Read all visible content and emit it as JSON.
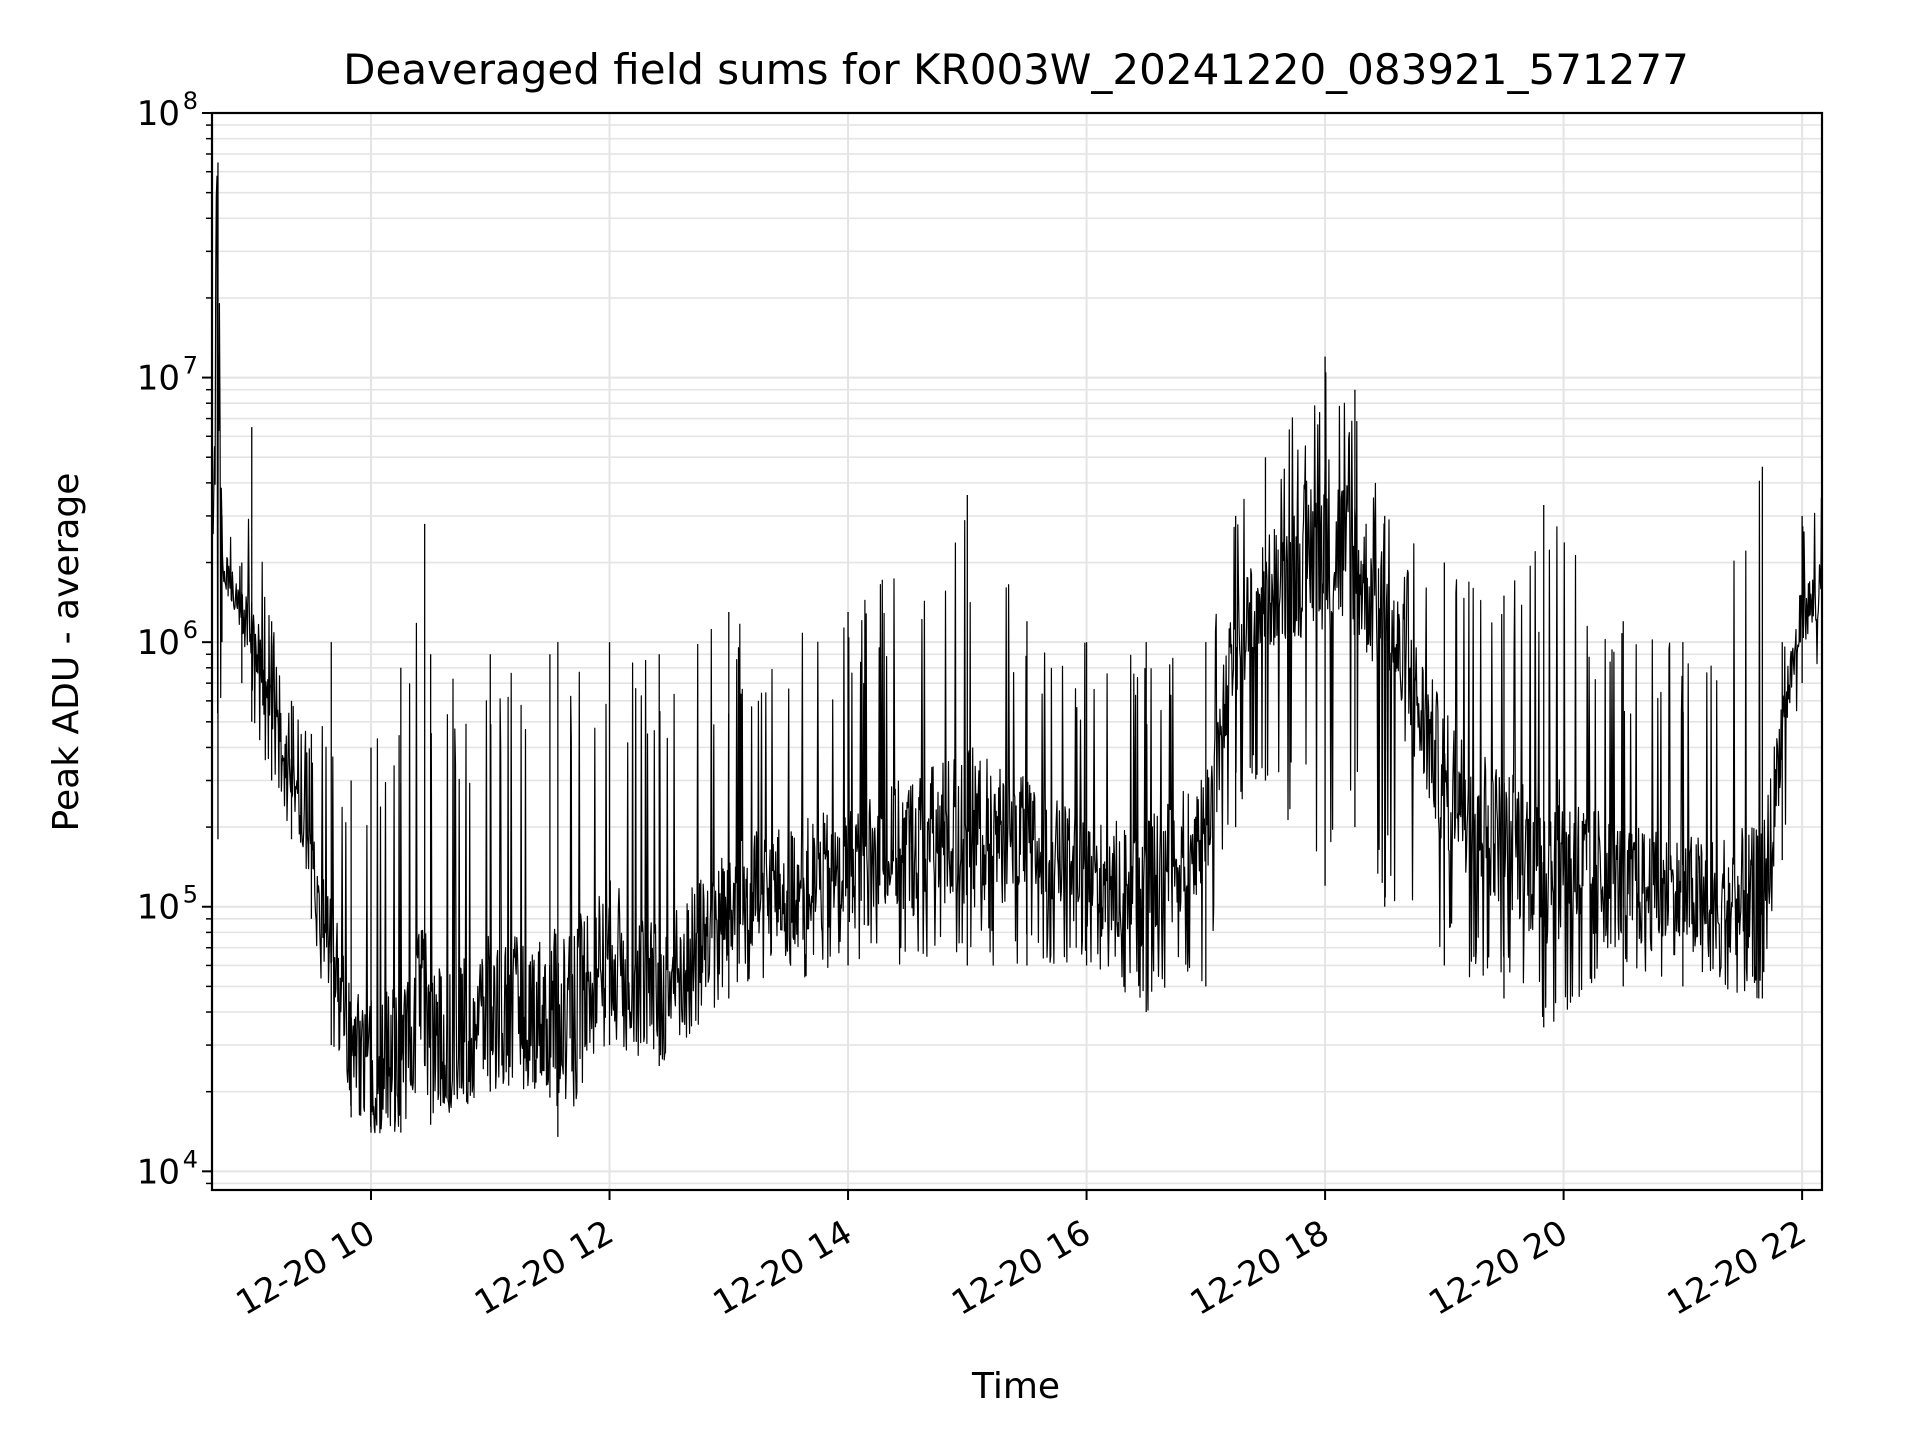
{
  "chart_data": {
    "type": "line",
    "title": "Deaveraged field sums for KR003W_20241220_083921_571277",
    "xlabel": "Time",
    "ylabel": "Peak ADU - average",
    "yscale": "log",
    "ylim": [
      8500,
      100000000
    ],
    "xlim": [
      "2024-12-20 08:40",
      "2024-12-20 22:10"
    ],
    "grid": true,
    "line_color": "#000000",
    "x_ticks": [
      "2024-12-20 10:00",
      "2024-12-20 12:00",
      "2024-12-20 14:00",
      "2024-12-20 16:00",
      "2024-12-20 18:00",
      "2024-12-20 20:00",
      "2024-12-20 22:00"
    ],
    "x_tick_labels": [
      "12-20 10",
      "12-20 12",
      "12-20 14",
      "12-20 16",
      "12-20 18",
      "12-20 20",
      "12-20 22"
    ],
    "y_ticks": [
      {
        "base": "10",
        "exp": "4",
        "value": 10000
      },
      {
        "base": "10",
        "exp": "5",
        "value": 100000
      },
      {
        "base": "10",
        "exp": "6",
        "value": 1000000
      },
      {
        "base": "10",
        "exp": "7",
        "value": 10000000
      },
      {
        "base": "10",
        "exp": "8",
        "value": 100000000
      }
    ],
    "series": [
      {
        "envelope_points": [
          {
            "x": "2024-12-20 08:40",
            "low": 500000,
            "mid": 3000000,
            "high": 50000000
          },
          {
            "x": "2024-12-20 08:43",
            "low": 180000,
            "mid": 20000000,
            "high": 65000000
          },
          {
            "x": "2024-12-20 08:45",
            "low": 1000000,
            "mid": 2000000,
            "high": 3000000
          },
          {
            "x": "2024-12-20 08:55",
            "low": 700000,
            "mid": 1300000,
            "high": 2000000
          },
          {
            "x": "2024-12-20 09:00",
            "low": 500000,
            "mid": 1000000,
            "high": 6500000
          },
          {
            "x": "2024-12-20 09:10",
            "low": 300000,
            "mid": 600000,
            "high": 1200000
          },
          {
            "x": "2024-12-20 09:20",
            "low": 180000,
            "mid": 300000,
            "high": 600000
          },
          {
            "x": "2024-12-20 09:30",
            "low": 90000,
            "mid": 150000,
            "high": 450000
          },
          {
            "x": "2024-12-20 09:40",
            "low": 30000,
            "mid": 60000,
            "high": 1000000
          },
          {
            "x": "2024-12-20 09:50",
            "low": 16000,
            "mid": 30000,
            "high": 300000
          },
          {
            "x": "2024-12-20 10:00",
            "low": 14000,
            "mid": 25000,
            "high": 400000
          },
          {
            "x": "2024-12-20 10:15",
            "low": 14000,
            "mid": 25000,
            "high": 800000
          },
          {
            "x": "2024-12-20 10:30",
            "low": 15000,
            "mid": 30000,
            "high": 900000
          },
          {
            "x": "2024-12-20 10:27",
            "low": 25000,
            "mid": 40000,
            "high": 2800000
          },
          {
            "x": "2024-12-20 11:00",
            "low": 20000,
            "mid": 40000,
            "high": 900000
          },
          {
            "x": "2024-12-20 11:30",
            "low": 19000,
            "mid": 40000,
            "high": 900000
          },
          {
            "x": "2024-12-20 11:34",
            "low": 13500,
            "mid": 40000,
            "high": 1000000
          },
          {
            "x": "2024-12-20 12:00",
            "low": 30000,
            "mid": 70000,
            "high": 1000000
          },
          {
            "x": "2024-12-20 12:25",
            "low": 25000,
            "mid": 45000,
            "high": 900000
          },
          {
            "x": "2024-12-20 13:00",
            "low": 45000,
            "mid": 100000,
            "high": 1300000
          },
          {
            "x": "2024-12-20 14:00",
            "low": 60000,
            "mid": 140000,
            "high": 1300000
          },
          {
            "x": "2024-12-20 15:00",
            "low": 60000,
            "mid": 200000,
            "high": 3600000
          },
          {
            "x": "2024-12-20 15:30",
            "low": 60000,
            "mid": 180000,
            "high": 1200000
          },
          {
            "x": "2024-12-20 16:00",
            "low": 60000,
            "mid": 130000,
            "high": 1000000
          },
          {
            "x": "2024-12-20 16:30",
            "low": 40000,
            "mid": 120000,
            "high": 1000000
          },
          {
            "x": "2024-12-20 17:00",
            "low": 50000,
            "mid": 200000,
            "high": 1000000
          },
          {
            "x": "2024-12-20 17:15",
            "low": 200000,
            "mid": 1000000,
            "high": 3000000
          },
          {
            "x": "2024-12-20 17:30",
            "low": 300000,
            "mid": 1500000,
            "high": 5000000
          },
          {
            "x": "2024-12-20 18:00",
            "low": 120000,
            "mid": 2500000,
            "high": 12000000
          },
          {
            "x": "2024-12-20 18:15",
            "low": 200000,
            "mid": 2000000,
            "high": 9000000
          },
          {
            "x": "2024-12-20 18:30",
            "low": 100000,
            "mid": 1200000,
            "high": 3000000
          },
          {
            "x": "2024-12-20 19:00",
            "low": 60000,
            "mid": 300000,
            "high": 2000000
          },
          {
            "x": "2024-12-20 19:30",
            "low": 45000,
            "mid": 180000,
            "high": 1500000
          },
          {
            "x": "2024-12-20 19:50",
            "low": 35000,
            "mid": 150000,
            "high": 3300000
          },
          {
            "x": "2024-12-20 20:30",
            "low": 50000,
            "mid": 120000,
            "high": 1200000
          },
          {
            "x": "2024-12-20 21:00",
            "low": 50000,
            "mid": 110000,
            "high": 1000000
          },
          {
            "x": "2024-12-20 21:40",
            "low": 45000,
            "mid": 90000,
            "high": 4600000
          },
          {
            "x": "2024-12-20 21:50",
            "low": 150000,
            "mid": 500000,
            "high": 1000000
          },
          {
            "x": "2024-12-20 22:00",
            "low": 700000,
            "mid": 1300000,
            "high": 3000000
          },
          {
            "x": "2024-12-20 22:10",
            "low": 800000,
            "mid": 1500000,
            "high": 4500000
          }
        ]
      }
    ]
  }
}
